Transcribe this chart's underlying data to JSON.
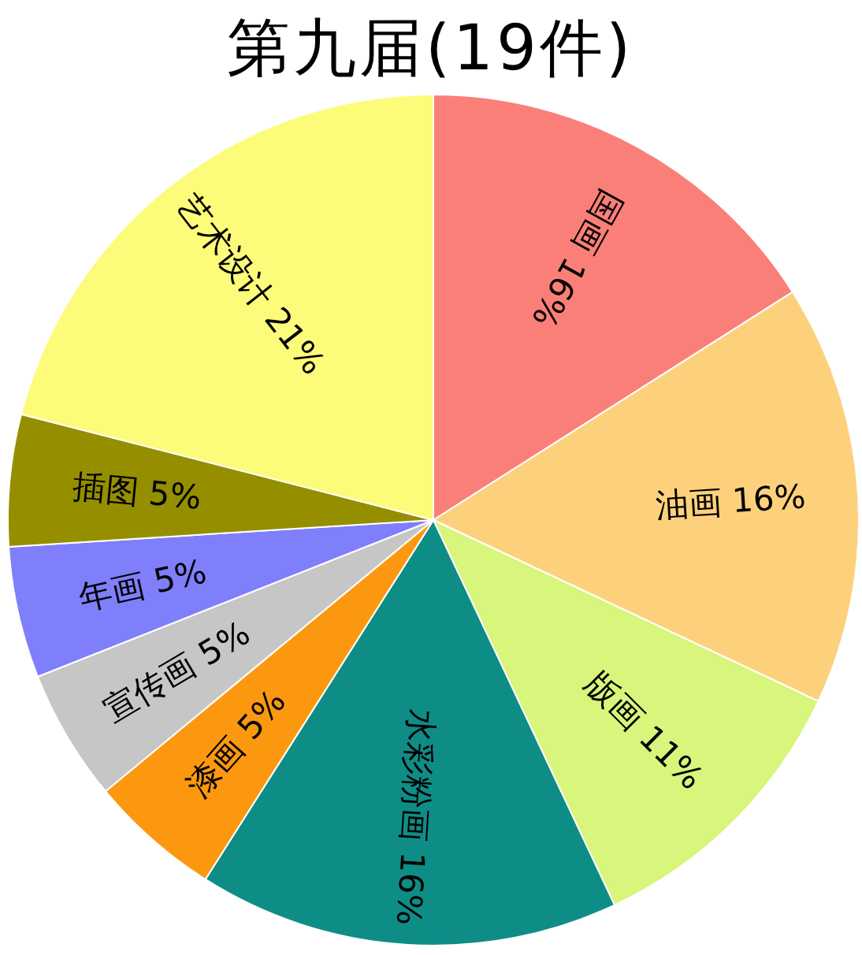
{
  "chart_data": {
    "type": "pie",
    "title": "第九届(19件)",
    "categories": [
      "国画",
      "油画",
      "版画",
      "水彩粉画",
      "漆画",
      "宣传画",
      "年画",
      "插图",
      "艺术设计"
    ],
    "values": [
      16,
      16,
      11,
      16,
      5,
      5,
      5,
      5,
      21
    ],
    "value_labels": [
      "16%",
      "16%",
      "11%",
      "16%",
      "5%",
      "5%",
      "5%",
      "5%",
      "21%"
    ],
    "colors": [
      "#fb7f79",
      "#fdd17b",
      "#d8f57c",
      "#0e8d87",
      "#fc9810",
      "#c6c6c6",
      "#7f7ffb",
      "#958f00",
      "#fdfb7a"
    ]
  }
}
